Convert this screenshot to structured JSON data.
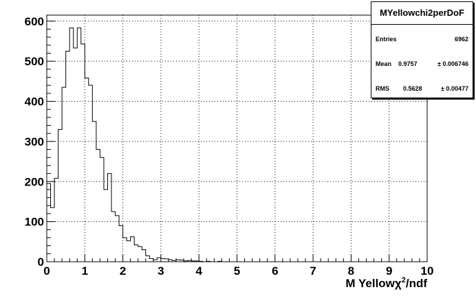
{
  "chart_data": {
    "type": "bar",
    "title": "",
    "xlabel_main": "M Yellow",
    "xlabel_chi": "χ",
    "xlabel_sup": "2",
    "xlabel_rest": "/ndf",
    "ylabel": "",
    "xlim": [
      0,
      10
    ],
    "ylim": [
      0,
      615
    ],
    "x_ticks": [
      "0",
      "1",
      "2",
      "3",
      "4",
      "5",
      "6",
      "7",
      "8",
      "9",
      "10"
    ],
    "y_ticks": [
      "0",
      "100",
      "200",
      "300",
      "400",
      "500",
      "600"
    ],
    "grid": true,
    "bin_width": 0.1,
    "bin_start": 0.0,
    "values": [
      195,
      135,
      208,
      330,
      435,
      525,
      583,
      533,
      583,
      543,
      458,
      440,
      350,
      280,
      260,
      180,
      220,
      125,
      115,
      90,
      60,
      52,
      62,
      42,
      38,
      30,
      15,
      8,
      5,
      10,
      8,
      7,
      5,
      3,
      5,
      4,
      2,
      3,
      2,
      2,
      1,
      0,
      1,
      0,
      0,
      1,
      0,
      0,
      0,
      0,
      0,
      0,
      0,
      0,
      0,
      0,
      0,
      0,
      0,
      0,
      0,
      0,
      0,
      0,
      0,
      0,
      0,
      0,
      0,
      0,
      0,
      0,
      0,
      0,
      0,
      0,
      0,
      0,
      0,
      0,
      0,
      0,
      0,
      0,
      0,
      0,
      0,
      0,
      0,
      0,
      0,
      0,
      0,
      0,
      0,
      0,
      0,
      0,
      0,
      0
    ]
  },
  "stats_box": {
    "name": "MYellowchi2perDoF",
    "entries_label": "Entries",
    "entries_value": "6962",
    "mean_label": "Mean",
    "mean_value": "0.9757",
    "mean_error": "± 0.006746",
    "rms_label": "RMS",
    "rms_value": "0.5628",
    "rms_error": "± 0.00477"
  }
}
